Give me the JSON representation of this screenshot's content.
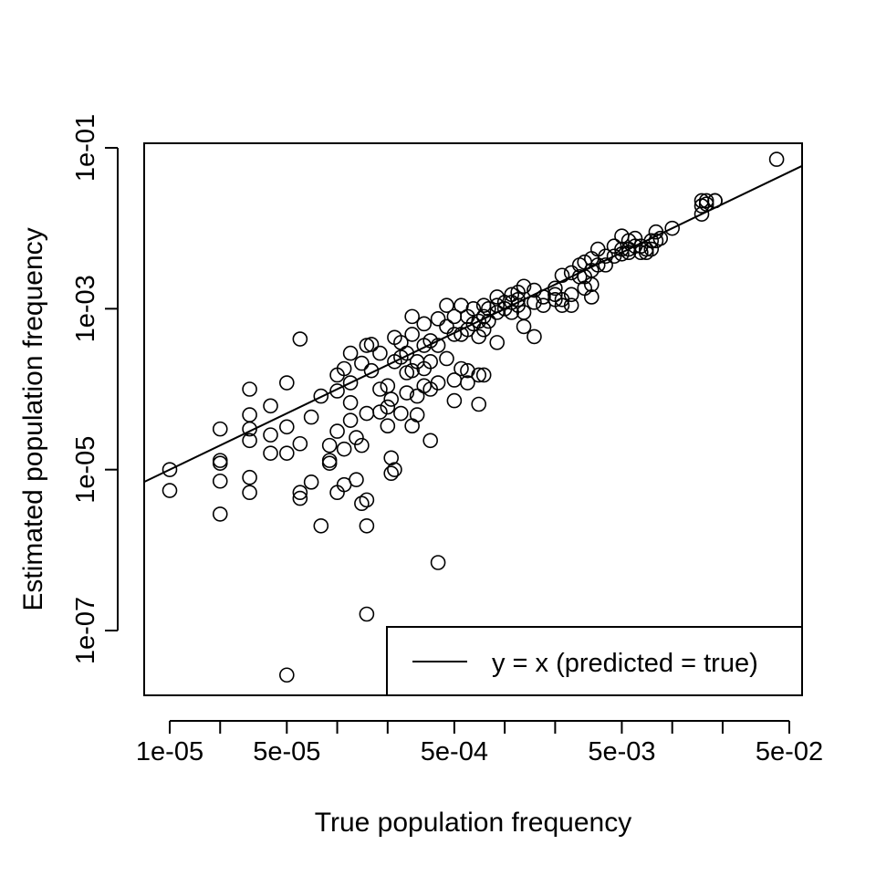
{
  "chart_data": {
    "type": "scatter",
    "title": "",
    "xlabel": "True population frequency",
    "ylabel": "Estimated population frequency",
    "x_scale": "log",
    "y_scale": "log",
    "xlim": [
      7.5e-06,
      0.055
    ],
    "ylim": [
      1.5e-08,
      0.12
    ],
    "x_ticks": [
      1e-05,
      2e-05,
      5e-05,
      0.0001,
      0.0002,
      0.0005,
      0.001,
      0.002,
      0.005,
      0.01,
      0.02,
      0.05
    ],
    "x_tick_labels": [
      "1e-05",
      "",
      "5e-05",
      "",
      "",
      "5e-04",
      "",
      "",
      "5e-03",
      "",
      "",
      "5e-02"
    ],
    "y_ticks": [
      1e-07,
      1e-05,
      0.001,
      0.1
    ],
    "y_tick_labels": [
      "1e-07",
      "1e-05",
      "1e-03",
      "1e-01"
    ],
    "grid": false,
    "legend": {
      "position": "bottom-right",
      "entries": [
        {
          "label": "y = x (predicted = true)",
          "style": "line"
        }
      ]
    },
    "series": [
      {
        "marker": "open-circle",
        "points": [
          [
            1e-05,
            1e-05
          ],
          [
            1e-05,
            5.5e-06
          ],
          [
            2e-05,
            3.2e-05
          ],
          [
            2e-05,
            1.3e-05
          ],
          [
            2e-05,
            1.2e-05
          ],
          [
            2e-05,
            7.2e-06
          ],
          [
            2e-05,
            2.8e-06
          ],
          [
            3e-05,
            0.0001
          ],
          [
            3e-05,
            4.8e-05
          ],
          [
            3e-05,
            3.2e-05
          ],
          [
            3e-05,
            2.3e-05
          ],
          [
            3e-05,
            8e-06
          ],
          [
            3e-05,
            5.2e-06
          ],
          [
            4e-05,
            6.2e-05
          ],
          [
            4e-05,
            2.7e-05
          ],
          [
            4e-05,
            1.6e-05
          ],
          [
            5e-05,
            0.00012
          ],
          [
            5e-05,
            3.4e-05
          ],
          [
            5e-05,
            1.6e-05
          ],
          [
            5e-05,
            2.8e-08
          ],
          [
            6e-05,
            0.00042
          ],
          [
            6e-05,
            2.1e-05
          ],
          [
            6e-05,
            5.2e-06
          ],
          [
            6e-05,
            4.4e-06
          ],
          [
            7e-05,
            4.5e-05
          ],
          [
            7e-05,
            7e-06
          ],
          [
            8e-05,
            8.2e-05
          ],
          [
            8e-05,
            2e-06
          ],
          [
            9e-05,
            2e-05
          ],
          [
            9e-05,
            1.3e-05
          ],
          [
            9e-05,
            1.2e-05
          ],
          [
            0.0001,
            0.00015
          ],
          [
            0.0001,
            9.5e-05
          ],
          [
            0.0001,
            3e-05
          ],
          [
            0.0001,
            5.2e-06
          ],
          [
            0.00011,
            0.00018
          ],
          [
            0.00011,
            1.8e-05
          ],
          [
            0.00011,
            6.5e-06
          ],
          [
            0.00012,
            0.00028
          ],
          [
            0.00012,
            0.00012
          ],
          [
            0.00012,
            6.8e-05
          ],
          [
            0.00012,
            4.1e-05
          ],
          [
            0.00013,
            2.5e-05
          ],
          [
            0.00013,
            7.5e-06
          ],
          [
            0.00014,
            0.00021
          ],
          [
            0.00014,
            2e-05
          ],
          [
            0.00014,
            3.8e-06
          ],
          [
            0.00015,
            0.00035
          ],
          [
            0.00015,
            5e-05
          ],
          [
            0.00015,
            4.2e-06
          ],
          [
            0.00015,
            1.6e-07
          ],
          [
            0.00015,
            2e-06
          ],
          [
            0.00016,
            0.00036
          ],
          [
            0.00016,
            0.00017
          ],
          [
            0.00018,
            0.00028
          ],
          [
            0.00018,
            0.0001
          ],
          [
            0.00018,
            5.2e-05
          ],
          [
            0.0002,
            0.00011
          ],
          [
            0.0002,
            6e-05
          ],
          [
            0.0002,
            3.5e-05
          ],
          [
            0.00021,
            7.5e-05
          ],
          [
            0.00021,
            1.4e-05
          ],
          [
            0.00021,
            9e-06
          ],
          [
            0.00022,
            0.00044
          ],
          [
            0.00022,
            0.00022
          ],
          [
            0.00022,
            1e-05
          ],
          [
            0.00024,
            0.00038
          ],
          [
            0.00024,
            0.00025
          ],
          [
            0.00024,
            5e-05
          ],
          [
            0.00026,
            0.00028
          ],
          [
            0.00026,
            0.00016
          ],
          [
            0.00026,
            9e-05
          ],
          [
            0.00028,
            0.0008
          ],
          [
            0.00028,
            0.00048
          ],
          [
            0.00028,
            0.00017
          ],
          [
            0.00028,
            3.5e-05
          ],
          [
            0.0003,
            0.00022
          ],
          [
            0.0003,
            8.2e-05
          ],
          [
            0.0003,
            4.8e-05
          ],
          [
            0.00033,
            0.00065
          ],
          [
            0.00033,
            0.00035
          ],
          [
            0.00033,
            0.00018
          ],
          [
            0.00033,
            0.00011
          ],
          [
            0.00036,
            0.0004
          ],
          [
            0.00036,
            0.00022
          ],
          [
            0.00036,
            0.0001
          ],
          [
            0.00036,
            2.3e-05
          ],
          [
            0.0004,
            0.00075
          ],
          [
            0.0004,
            0.00035
          ],
          [
            0.0004,
            0.00012
          ],
          [
            0.0004,
            7e-07
          ],
          [
            0.00045,
            0.0011
          ],
          [
            0.00045,
            0.0006
          ],
          [
            0.00045,
            0.00024
          ],
          [
            0.0005,
            0.0008
          ],
          [
            0.0005,
            0.00048
          ],
          [
            0.0005,
            0.00013
          ],
          [
            0.0005,
            7.2e-05
          ],
          [
            0.00055,
            0.0011
          ],
          [
            0.00055,
            0.00048
          ],
          [
            0.00055,
            0.00018
          ],
          [
            0.0006,
            0.0008
          ],
          [
            0.0006,
            0.00055
          ],
          [
            0.0006,
            0.00017
          ],
          [
            0.0006,
            0.00012
          ],
          [
            0.00065,
            0.001
          ],
          [
            0.00065,
            0.00065
          ],
          [
            0.0007,
            0.0007
          ],
          [
            0.0007,
            0.00045
          ],
          [
            0.0007,
            0.00015
          ],
          [
            0.0007,
            6.5e-05
          ],
          [
            0.00075,
            0.0011
          ],
          [
            0.00075,
            0.0008
          ],
          [
            0.00075,
            0.00055
          ],
          [
            0.00075,
            0.00015
          ],
          [
            0.0008,
            0.001
          ],
          [
            0.0008,
            0.0007
          ],
          [
            0.0009,
            0.0014
          ],
          [
            0.0009,
            0.0011
          ],
          [
            0.0009,
            0.0009
          ],
          [
            0.0009,
            0.00038
          ],
          [
            0.001,
            0.0012
          ],
          [
            0.001,
            0.001
          ],
          [
            0.0011,
            0.0015
          ],
          [
            0.0011,
            0.0012
          ],
          [
            0.0011,
            0.0009
          ],
          [
            0.0012,
            0.0016
          ],
          [
            0.0012,
            0.0013
          ],
          [
            0.0012,
            0.0011
          ],
          [
            0.0013,
            0.0019
          ],
          [
            0.0013,
            0.0009
          ],
          [
            0.0013,
            0.0006
          ],
          [
            0.0015,
            0.0017
          ],
          [
            0.0015,
            0.0012
          ],
          [
            0.0015,
            0.00045
          ],
          [
            0.0017,
            0.0014
          ],
          [
            0.0017,
            0.0011
          ],
          [
            0.002,
            0.0018
          ],
          [
            0.002,
            0.0015
          ],
          [
            0.002,
            0.0013
          ],
          [
            0.0022,
            0.0026
          ],
          [
            0.0022,
            0.0013
          ],
          [
            0.0022,
            0.0011
          ],
          [
            0.0025,
            0.0028
          ],
          [
            0.0025,
            0.0015
          ],
          [
            0.0025,
            0.0011
          ],
          [
            0.0028,
            0.0035
          ],
          [
            0.0028,
            0.0025
          ],
          [
            0.003,
            0.0038
          ],
          [
            0.003,
            0.0025
          ],
          [
            0.003,
            0.0018
          ],
          [
            0.0033,
            0.0042
          ],
          [
            0.0033,
            0.003
          ],
          [
            0.0033,
            0.002
          ],
          [
            0.0033,
            0.0014
          ],
          [
            0.0036,
            0.0055
          ],
          [
            0.0036,
            0.0035
          ],
          [
            0.004,
            0.0045
          ],
          [
            0.004,
            0.0035
          ],
          [
            0.0045,
            0.006
          ],
          [
            0.0045,
            0.0045
          ],
          [
            0.005,
            0.008
          ],
          [
            0.005,
            0.0055
          ],
          [
            0.005,
            0.0048
          ],
          [
            0.0055,
            0.007
          ],
          [
            0.0055,
            0.0055
          ],
          [
            0.0055,
            0.005
          ],
          [
            0.006,
            0.0075
          ],
          [
            0.006,
            0.006
          ],
          [
            0.0065,
            0.006
          ],
          [
            0.0065,
            0.005
          ],
          [
            0.007,
            0.0055
          ],
          [
            0.007,
            0.005
          ],
          [
            0.0075,
            0.007
          ],
          [
            0.0075,
            0.0055
          ],
          [
            0.008,
            0.009
          ],
          [
            0.008,
            0.007
          ],
          [
            0.0085,
            0.0075
          ],
          [
            0.01,
            0.01
          ],
          [
            0.015,
            0.015
          ],
          [
            0.015,
            0.019
          ],
          [
            0.015,
            0.022
          ],
          [
            0.016,
            0.02
          ],
          [
            0.016,
            0.022
          ],
          [
            0.018,
            0.022
          ],
          [
            0.018,
            0.022
          ],
          [
            0.042,
            0.072
          ]
        ]
      }
    ],
    "reference_line": {
      "label": "y = x (predicted = true)",
      "slope": 1,
      "intercept": 0
    }
  }
}
